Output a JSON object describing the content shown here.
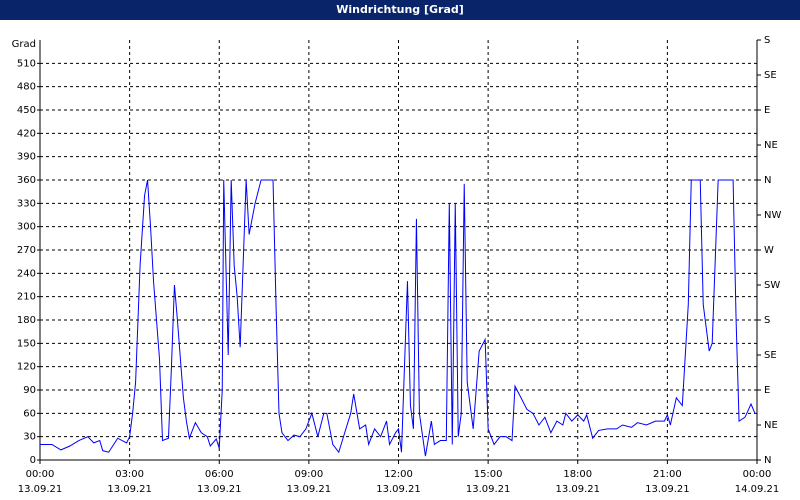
{
  "chart_data": {
    "type": "line",
    "title": "Windrichtung [Grad]",
    "y_label": "Grad",
    "color": "#0000ff",
    "grid": true,
    "x": [
      0.0,
      0.4,
      0.7,
      1.0,
      1.3,
      1.6,
      1.8,
      2.0,
      2.1,
      2.3,
      2.6,
      2.9,
      3.0,
      3.1,
      3.2,
      3.35,
      3.5,
      3.6,
      3.7,
      3.8,
      4.0,
      4.1,
      4.3,
      4.4,
      4.5,
      4.6,
      4.8,
      4.9,
      5.0,
      5.2,
      5.4,
      5.6,
      5.7,
      5.9,
      6.0,
      6.1,
      6.15,
      6.3,
      6.4,
      6.5,
      6.6,
      6.7,
      6.9,
      7.0,
      7.2,
      7.4,
      7.8,
      7.9,
      8.0,
      8.1,
      8.3,
      8.5,
      8.7,
      8.9,
      9.1,
      9.3,
      9.5,
      9.6,
      9.8,
      10.0,
      10.2,
      10.4,
      10.5,
      10.7,
      10.9,
      11.0,
      11.2,
      11.4,
      11.6,
      11.7,
      11.9,
      12.0,
      12.1,
      12.3,
      12.4,
      12.5,
      12.6,
      12.7,
      12.9,
      13.1,
      13.2,
      13.4,
      13.6,
      13.7,
      13.8,
      13.9,
      14.0,
      14.1,
      14.2,
      14.3,
      14.5,
      14.7,
      14.9,
      15.0,
      15.2,
      15.4,
      15.6,
      15.8,
      15.9,
      16.1,
      16.3,
      16.5,
      16.7,
      16.9,
      17.1,
      17.3,
      17.5,
      17.6,
      17.8,
      18.0,
      18.2,
      18.3,
      18.5,
      18.7,
      19.0,
      19.3,
      19.5,
      19.8,
      20.0,
      20.3,
      20.6,
      20.9,
      21.0,
      21.1,
      21.3,
      21.5,
      21.7,
      21.8,
      22.1,
      22.2,
      22.4,
      22.5,
      22.7,
      23.2,
      23.3,
      23.4,
      23.6,
      23.8,
      23.93
    ],
    "values": [
      20,
      20,
      13,
      18,
      25,
      30,
      22,
      25,
      12,
      10,
      28,
      22,
      30,
      60,
      100,
      250,
      340,
      360,
      300,
      230,
      130,
      25,
      28,
      120,
      225,
      180,
      80,
      50,
      28,
      48,
      35,
      30,
      18,
      27,
      15,
      90,
      360,
      135,
      360,
      250,
      210,
      145,
      360,
      290,
      330,
      360,
      360,
      200,
      60,
      35,
      25,
      32,
      30,
      40,
      60,
      30,
      60,
      60,
      20,
      10,
      35,
      60,
      85,
      40,
      45,
      20,
      40,
      30,
      50,
      20,
      35,
      40,
      10,
      230,
      70,
      40,
      310,
      60,
      5,
      50,
      20,
      25,
      25,
      330,
      20,
      330,
      30,
      60,
      355,
      100,
      40,
      140,
      155,
      40,
      20,
      30,
      30,
      25,
      95,
      80,
      65,
      60,
      45,
      55,
      35,
      50,
      45,
      60,
      50,
      58,
      50,
      58,
      28,
      38,
      40,
      40,
      45,
      42,
      48,
      45,
      50,
      50,
      58,
      45,
      80,
      70,
      200,
      360,
      360,
      200,
      140,
      150,
      360,
      360,
      180,
      50,
      55,
      72,
      60
    ],
    "xlim": [
      0,
      24
    ],
    "xticks": [
      {
        "value": 0,
        "label": "00:00"
      },
      {
        "value": 3,
        "label": "03:00"
      },
      {
        "value": 6,
        "label": "06:00"
      },
      {
        "value": 9,
        "label": "09:00"
      },
      {
        "value": 12,
        "label": "12:00"
      },
      {
        "value": 15,
        "label": "15:00"
      },
      {
        "value": 18,
        "label": "18:00"
      },
      {
        "value": 21,
        "label": "21:00"
      },
      {
        "value": 24,
        "label": "00:00"
      }
    ],
    "xtick_dates": [
      "13.09.21",
      "13.09.21",
      "13.09.21",
      "13.09.21",
      "13.09.21",
      "13.09.21",
      "13.09.21",
      "13.09.21",
      "14.09.21"
    ],
    "ylim": [
      0,
      540
    ],
    "yticks": [
      0,
      30,
      60,
      90,
      120,
      150,
      180,
      210,
      240,
      270,
      300,
      330,
      360,
      390,
      420,
      450,
      480,
      510
    ],
    "y2lim": [
      0,
      540
    ],
    "y2ticks": [
      {
        "value": 0,
        "label": "N"
      },
      {
        "value": 45,
        "label": "NE"
      },
      {
        "value": 90,
        "label": "E"
      },
      {
        "value": 135,
        "label": "SE"
      },
      {
        "value": 180,
        "label": "S"
      },
      {
        "value": 225,
        "label": "SW"
      },
      {
        "value": 270,
        "label": "W"
      },
      {
        "value": 315,
        "label": "NW"
      },
      {
        "value": 360,
        "label": "N"
      },
      {
        "value": 405,
        "label": "NE"
      },
      {
        "value": 450,
        "label": "E"
      },
      {
        "value": 495,
        "label": "SE"
      },
      {
        "value": 540,
        "label": "S"
      }
    ]
  }
}
